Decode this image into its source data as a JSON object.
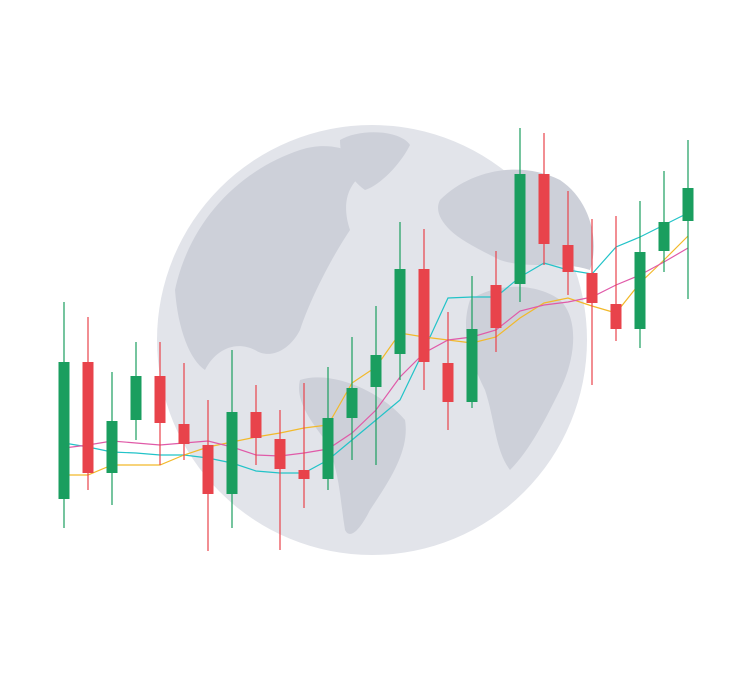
{
  "chart_data": {
    "type": "candlestick",
    "ylim": [
      0,
      680
    ],
    "up_color": "#1a9e5f",
    "down_color": "#e8434b",
    "grid": true,
    "open": [
      181,
      318,
      207,
      260,
      304,
      256,
      235,
      186,
      268,
      241,
      210,
      201,
      262,
      293,
      326,
      411,
      317,
      278,
      395,
      396,
      506,
      435,
      407,
      376,
      351,
      429,
      459
    ],
    "high": [
      378,
      363,
      308,
      338,
      338,
      317,
      280,
      330,
      295,
      270,
      297,
      313,
      343,
      374,
      458,
      451,
      368,
      404,
      429,
      552,
      547,
      489,
      461,
      464,
      479,
      509,
      540
    ],
    "low": [
      152,
      190,
      175,
      240,
      215,
      220,
      129,
      152,
      215,
      130,
      172,
      190,
      220,
      215,
      300,
      290,
      250,
      272,
      328,
      378,
      415,
      385,
      295,
      339,
      332,
      408,
      381
    ],
    "close": [
      318,
      207,
      259,
      304,
      257,
      236,
      186,
      268,
      242,
      211,
      201,
      262,
      292,
      325,
      411,
      318,
      278,
      351,
      352,
      506,
      436,
      408,
      377,
      351,
      428,
      458,
      492
    ],
    "overlays": [
      {
        "color": "#22c3c8",
        "values": [
          237,
          233,
          228,
          227,
          225,
          225,
          222,
          217,
          209,
          207,
          207,
          220,
          240,
          260,
          280,
          330,
          382,
          383,
          383,
          403,
          417,
          410,
          406,
          433,
          443,
          455,
          467
        ]
      },
      {
        "color": "#f2b92a",
        "values": [
          205,
          205,
          215,
          215,
          215,
          225,
          233,
          238,
          243,
          247,
          252,
          255,
          297,
          313,
          347,
          343,
          340,
          337,
          343,
          362,
          377,
          382,
          374,
          367,
          397,
          420,
          444
        ]
      },
      {
        "color": "#e05aa8",
        "values": [
          232,
          235,
          239,
          237,
          235,
          237,
          239,
          233,
          225,
          224,
          227,
          231,
          247,
          270,
          303,
          327,
          340,
          343,
          350,
          369,
          375,
          378,
          383,
          395,
          405,
          418,
          432
        ]
      }
    ]
  }
}
